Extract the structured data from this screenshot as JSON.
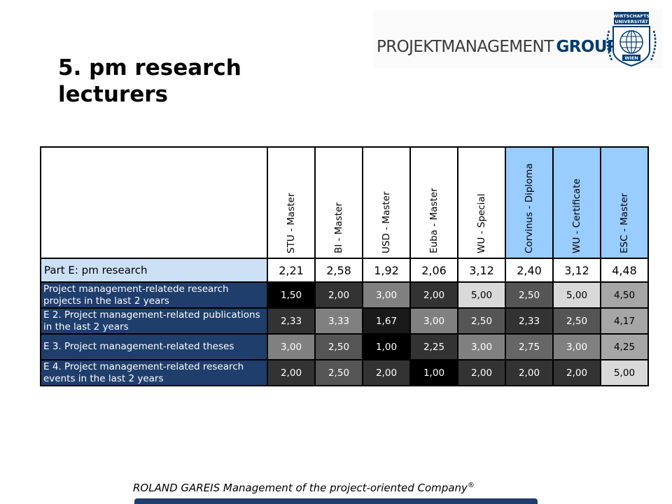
{
  "title": "5. pm research lecturers",
  "logo": {
    "text_main": "PROJEKTMANAGEMENT",
    "text_bold": "GROUP",
    "seal_top": "WIRTSCHAFTS",
    "seal_mid": "UNIVERSITÄT",
    "seal_bottom": "WIEN",
    "brand_color": "#003a70"
  },
  "table": {
    "columns": [
      {
        "label": "STU - Master",
        "highlight": false
      },
      {
        "label": "BI - Master",
        "highlight": false
      },
      {
        "label": "USD - Master",
        "highlight": false
      },
      {
        "label": "Euba - Master",
        "highlight": false
      },
      {
        "label": "WU - Special",
        "highlight": false
      },
      {
        "label": "Corvinus - Diploma",
        "highlight": true
      },
      {
        "label": "WU - Certificate",
        "highlight": true
      },
      {
        "label": "ESC - Master",
        "highlight": true
      }
    ],
    "part_row": {
      "label": "Part E: pm research",
      "values": [
        "2,21",
        "2,58",
        "1,92",
        "2,06",
        "3,12",
        "2,40",
        "3,12",
        "4,48"
      ]
    },
    "rows": [
      {
        "label": "Project management-relatede research projects in the last 2 years",
        "values": [
          "1,50",
          "2,00",
          "3,00",
          "2,00",
          "5,00",
          "2,50",
          "5,00",
          "4,50"
        ],
        "shades": [
          "#000000",
          "#333333",
          "#808080",
          "#333333",
          "#d9d9d9",
          "#555555",
          "#d9d9d9",
          "#a6a6a6"
        ]
      },
      {
        "label": "E 2. Project management-related publications in the last 2 years",
        "values": [
          "2,33",
          "3,33",
          "1,67",
          "3,00",
          "2,50",
          "2,33",
          "2,50",
          "4,17"
        ],
        "shades": [
          "#333333",
          "#808080",
          "#1a1a1a",
          "#808080",
          "#555555",
          "#333333",
          "#555555",
          "#a6a6a6"
        ]
      },
      {
        "label": "E 3. Project management-related theses",
        "values": [
          "3,00",
          "2,50",
          "1,00",
          "2,25",
          "3,00",
          "2,75",
          "3,00",
          "4,25"
        ],
        "shades": [
          "#808080",
          "#555555",
          "#000000",
          "#333333",
          "#808080",
          "#666666",
          "#808080",
          "#a6a6a6"
        ]
      },
      {
        "label": "E 4. Project management-related research events in the last 2 years",
        "values": [
          "2,00",
          "2,50",
          "2,00",
          "1,00",
          "2,00",
          "2,00",
          "2,00",
          "5,00"
        ],
        "shades": [
          "#333333",
          "#555555",
          "#333333",
          "#000000",
          "#333333",
          "#333333",
          "#333333",
          "#d9d9d9"
        ]
      }
    ]
  },
  "footer": {
    "text": "ROLAND GAREIS Management of the project-oriented Company",
    "mark": "®"
  }
}
